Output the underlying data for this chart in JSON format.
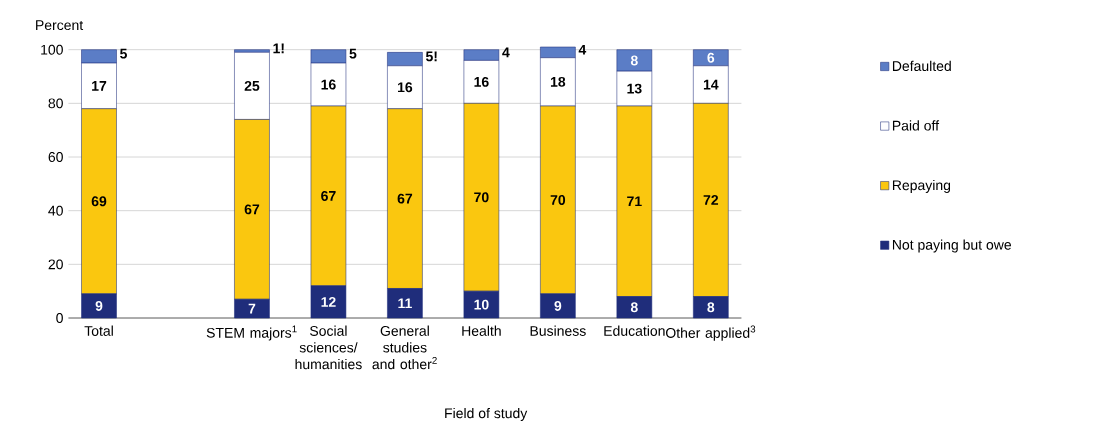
{
  "chart_data": {
    "type": "bar",
    "stacked": true,
    "ylabel": "Percent",
    "xlabel": "Field of study",
    "categories": [
      "Total",
      null,
      "STEM majors$^{1}$",
      "Social sciences/ humanities",
      "General studies and other$^{2}$",
      "Health",
      "Business",
      "Education",
      "Other applied$^{3}$"
    ],
    "series": [
      {
        "name": "Not paying but owe",
        "color": "#1f2d7b",
        "values": [
          9,
          null,
          7,
          12,
          11,
          10,
          9,
          8,
          8
        ],
        "value_labels": [
          "9",
          null,
          "7",
          "12",
          "11",
          "10",
          "9",
          "8",
          "8"
        ]
      },
      {
        "name": "Repaying",
        "color": "#fac70f",
        "values": [
          69,
          null,
          67,
          67,
          67,
          70,
          70,
          71,
          72
        ],
        "value_labels": [
          "69",
          null,
          "67",
          "67",
          "67",
          "70",
          "70",
          "71",
          "72"
        ]
      },
      {
        "name": "Paid off",
        "color": "#ffffff",
        "values": [
          17,
          null,
          25,
          16,
          16,
          16,
          18,
          13,
          14
        ],
        "value_labels": [
          "17",
          null,
          "25",
          "16",
          "16",
          "16",
          "18",
          "13",
          "14"
        ]
      },
      {
        "name": "Defaulted",
        "color": "#5b7dc6",
        "values": [
          5,
          null,
          1,
          5,
          5,
          4,
          4,
          8,
          6
        ],
        "value_labels": [
          "5",
          null,
          "1!",
          "5",
          "5!",
          "4",
          "4",
          "8",
          "6"
        ]
      }
    ],
    "ylim": [
      0,
      101
    ],
    "yticks": [
      0,
      20,
      40,
      60,
      80,
      100
    ],
    "grid": "y",
    "legend": "right"
  }
}
